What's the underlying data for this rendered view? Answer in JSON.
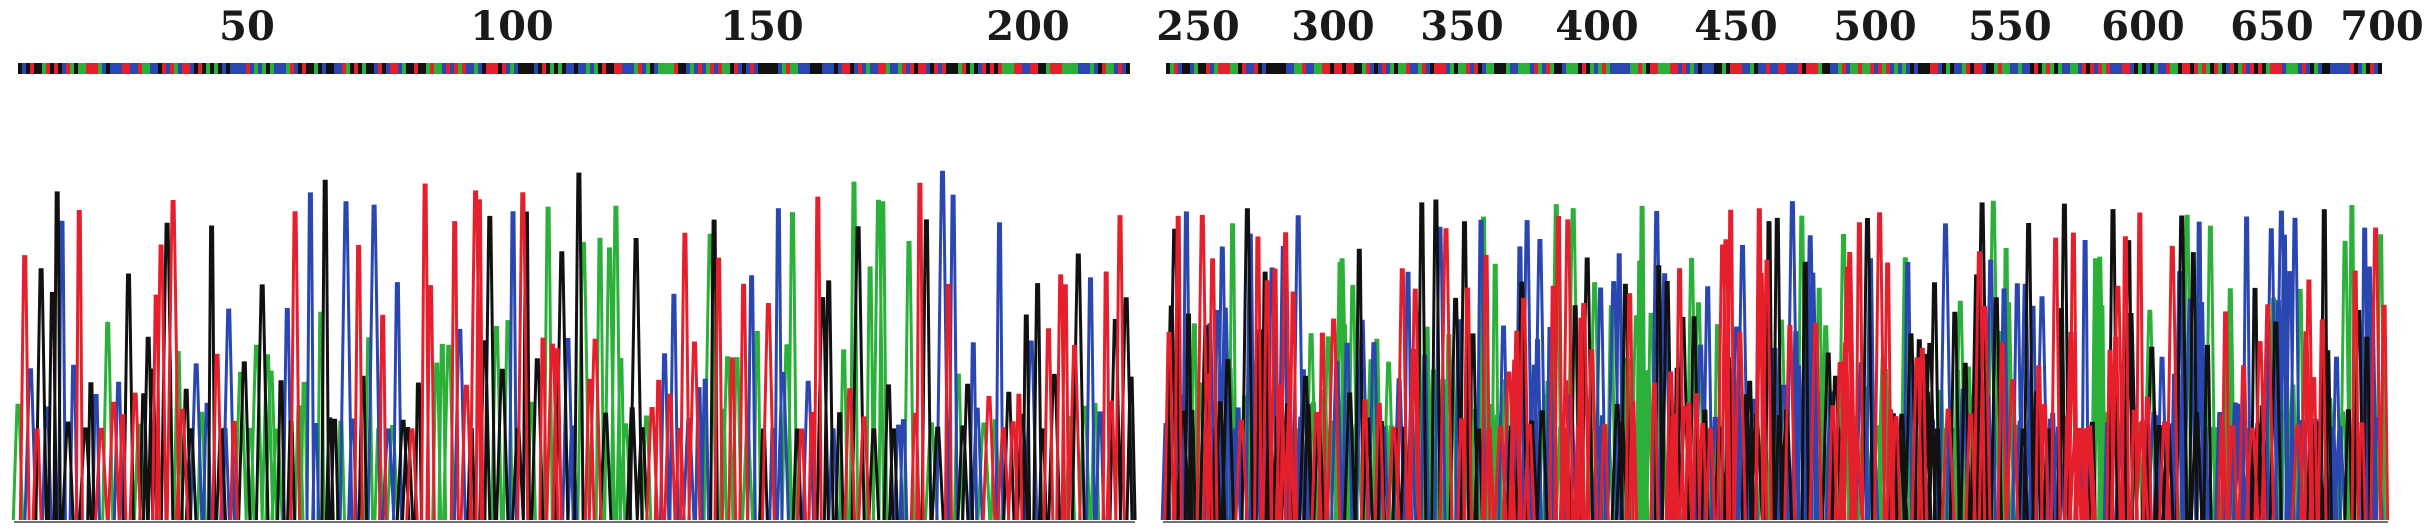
{
  "colors": {
    "A": "#2bb039",
    "C": "#2a46b0",
    "G": "#111111",
    "T": "#e5202c",
    "background": "#ffffff"
  },
  "chart_data": [
    {
      "type": "line",
      "description_kind": "chromatogram",
      "xlim": [
        1,
        220
      ],
      "ylim": [
        0,
        100
      ],
      "grid": false,
      "legend": "none",
      "tick_labels": [
        "50",
        "100",
        "150",
        "200"
      ],
      "series": []
    },
    {
      "type": "line",
      "description_kind": "chromatogram",
      "xlim": [
        250,
        700
      ],
      "ylim": [
        0,
        100
      ],
      "grid": false,
      "legend": "none",
      "tick_labels": [
        "250",
        "300",
        "350",
        "400",
        "450",
        "500",
        "550",
        "600",
        "650",
        "700"
      ],
      "series": []
    }
  ]
}
